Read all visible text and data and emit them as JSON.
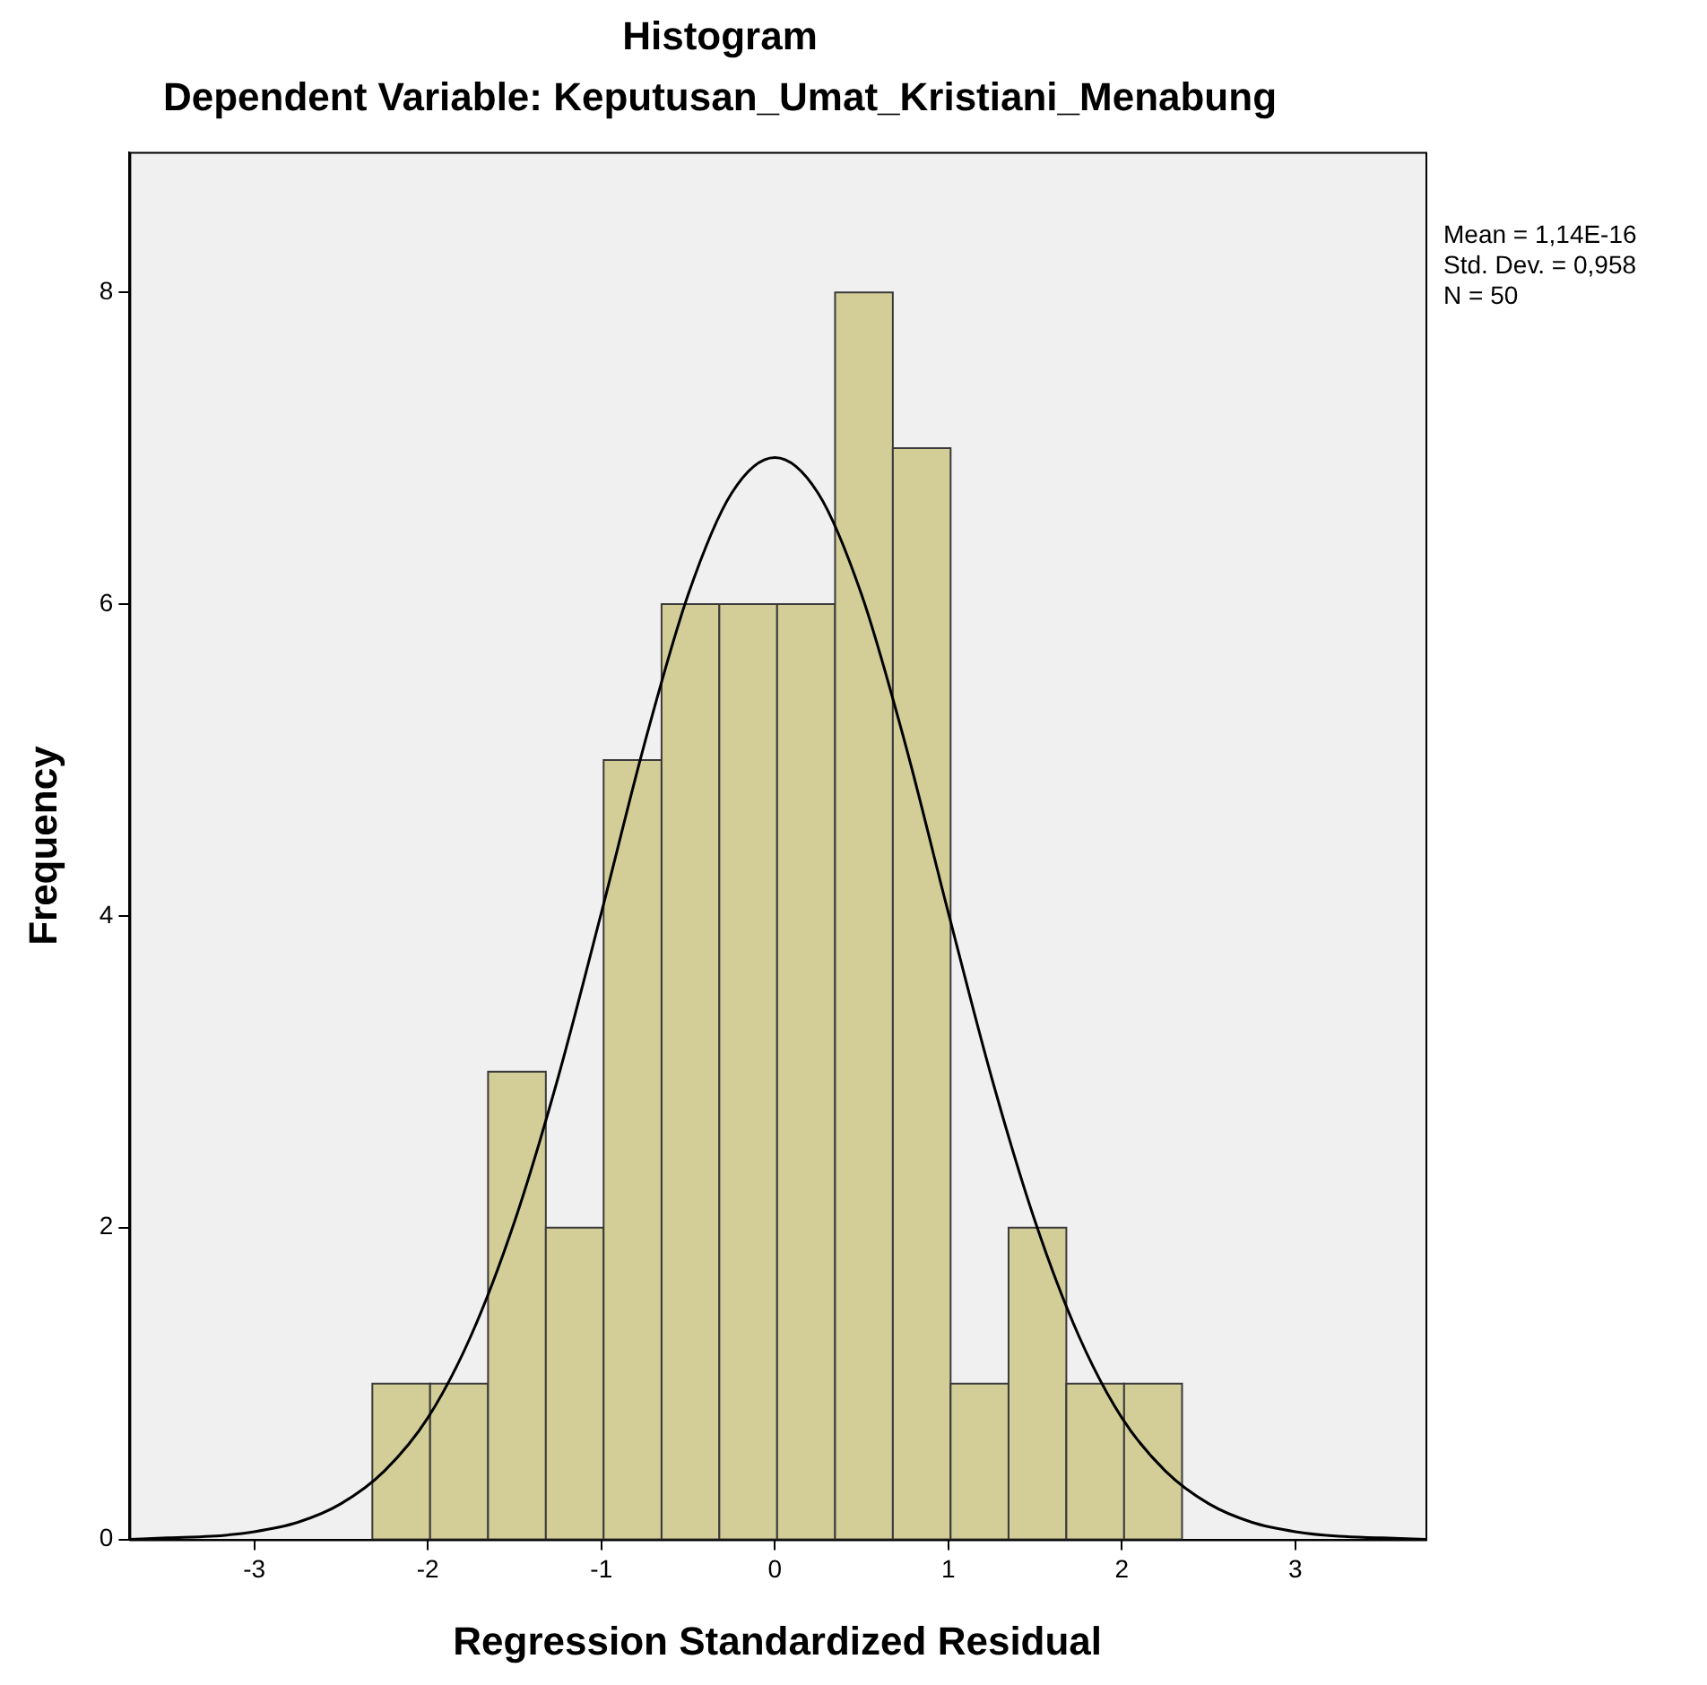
{
  "chart_data": {
    "type": "histogram",
    "title": "Histogram",
    "subtitle": "Dependent Variable: Keputusan_Umat_Kristiani_Menabung",
    "xlabel": "Regression Standardized Residual",
    "ylabel": "Frequency",
    "bins": [
      -2.32,
      -1.987,
      -1.653,
      -1.32,
      -0.987,
      -0.653,
      -0.32,
      0.013,
      0.347,
      0.68,
      1.013,
      1.347,
      1.68,
      2.013,
      2.347
    ],
    "values": [
      1,
      1,
      3,
      2,
      5,
      6,
      6,
      6,
      8,
      7,
      1,
      2,
      1,
      1
    ],
    "color": "#d3ce98",
    "series": [
      {
        "type": "line",
        "color": "#000000",
        "x": [
          -3.72,
          -3.5,
          -3.25,
          -3,
          -2.75,
          -2.5,
          -2.25,
          -2,
          -1.75,
          -1.5,
          -1.25,
          -1,
          -0.75,
          -0.5,
          -0.25,
          0,
          0.25,
          0.5,
          0.75,
          1,
          1.25,
          1.5,
          1.75,
          2,
          2.25,
          2.5,
          2.75,
          3,
          3.25,
          3.5,
          3.75
        ],
        "values": [
          0,
          0.01,
          0.02,
          0.05,
          0.11,
          0.23,
          0.44,
          0.78,
          1.31,
          2.04,
          2.96,
          4.02,
          5.11,
          6.06,
          6.71,
          6.94,
          6.71,
          6.06,
          5.11,
          4.02,
          2.96,
          2.04,
          1.31,
          0.78,
          0.44,
          0.23,
          0.11,
          0.05,
          0.02,
          0.01,
          0
        ]
      }
    ],
    "xlim": [
      -3.72,
      3.75
    ],
    "xticks": [
      -3,
      -2,
      -1,
      0,
      1,
      2,
      3
    ],
    "ylim": [
      0,
      8.9
    ],
    "yticks": [
      0,
      2,
      4,
      6,
      8
    ],
    "grid": false,
    "legend": false,
    "marker": "none",
    "annotations": [
      "Mean = 1,14E-16",
      "Std. Dev. = 0,958",
      "N = 50"
    ]
  }
}
